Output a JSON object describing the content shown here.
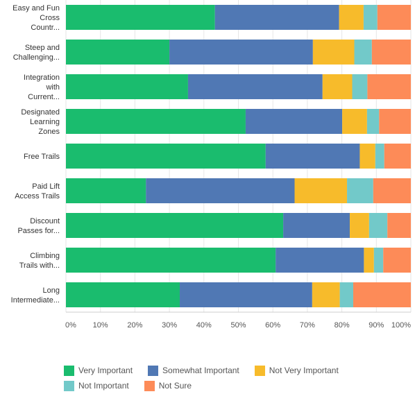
{
  "chart_data": {
    "type": "bar",
    "orientation": "horizontal",
    "stacked": true,
    "title": "",
    "xlabel": "",
    "ylabel": "",
    "xlim": [
      0,
      100
    ],
    "x_ticks": [
      "0%",
      "10%",
      "20%",
      "30%",
      "40%",
      "50%",
      "60%",
      "70%",
      "80%",
      "90%",
      "100%"
    ],
    "grid": true,
    "legend_position": "bottom",
    "categories": [
      [
        "Easy and Fun",
        "Cross",
        "Countr..."
      ],
      [
        "Steep and",
        "Challenging..."
      ],
      [
        "Integration",
        "with",
        "Current..."
      ],
      [
        "Designated",
        "Learning",
        "Zones"
      ],
      [
        "Free Trails"
      ],
      [
        "Paid Lift",
        "Access Trails"
      ],
      [
        "Discount",
        "Passes for..."
      ],
      [
        "Climbing",
        "Trails with..."
      ],
      [
        "Long",
        "Intermediate..."
      ]
    ],
    "series": [
      {
        "name": "Very Important",
        "color": "#1abc6e",
        "values": [
          43.2,
          30.0,
          35.4,
          52.1,
          57.9,
          23.2,
          63.0,
          60.8,
          33.0
        ]
      },
      {
        "name": "Somewhat Important",
        "color": "#5078b4",
        "values": [
          36.0,
          41.6,
          39.0,
          28.0,
          27.3,
          43.1,
          19.3,
          25.6,
          38.4
        ]
      },
      {
        "name": "Not Very Important",
        "color": "#f7bb2b",
        "values": [
          7.1,
          12.0,
          8.6,
          7.2,
          4.5,
          15.2,
          5.6,
          2.9,
          8.0
        ]
      },
      {
        "name": "Not Important",
        "color": "#72c9c9",
        "values": [
          4.0,
          5.1,
          4.4,
          3.5,
          2.6,
          7.6,
          5.3,
          2.7,
          3.9
        ]
      },
      {
        "name": "Not Sure",
        "color": "#fd8b58",
        "values": [
          9.7,
          11.3,
          12.6,
          9.2,
          7.7,
          10.9,
          6.8,
          8.0,
          16.7
        ]
      }
    ]
  }
}
